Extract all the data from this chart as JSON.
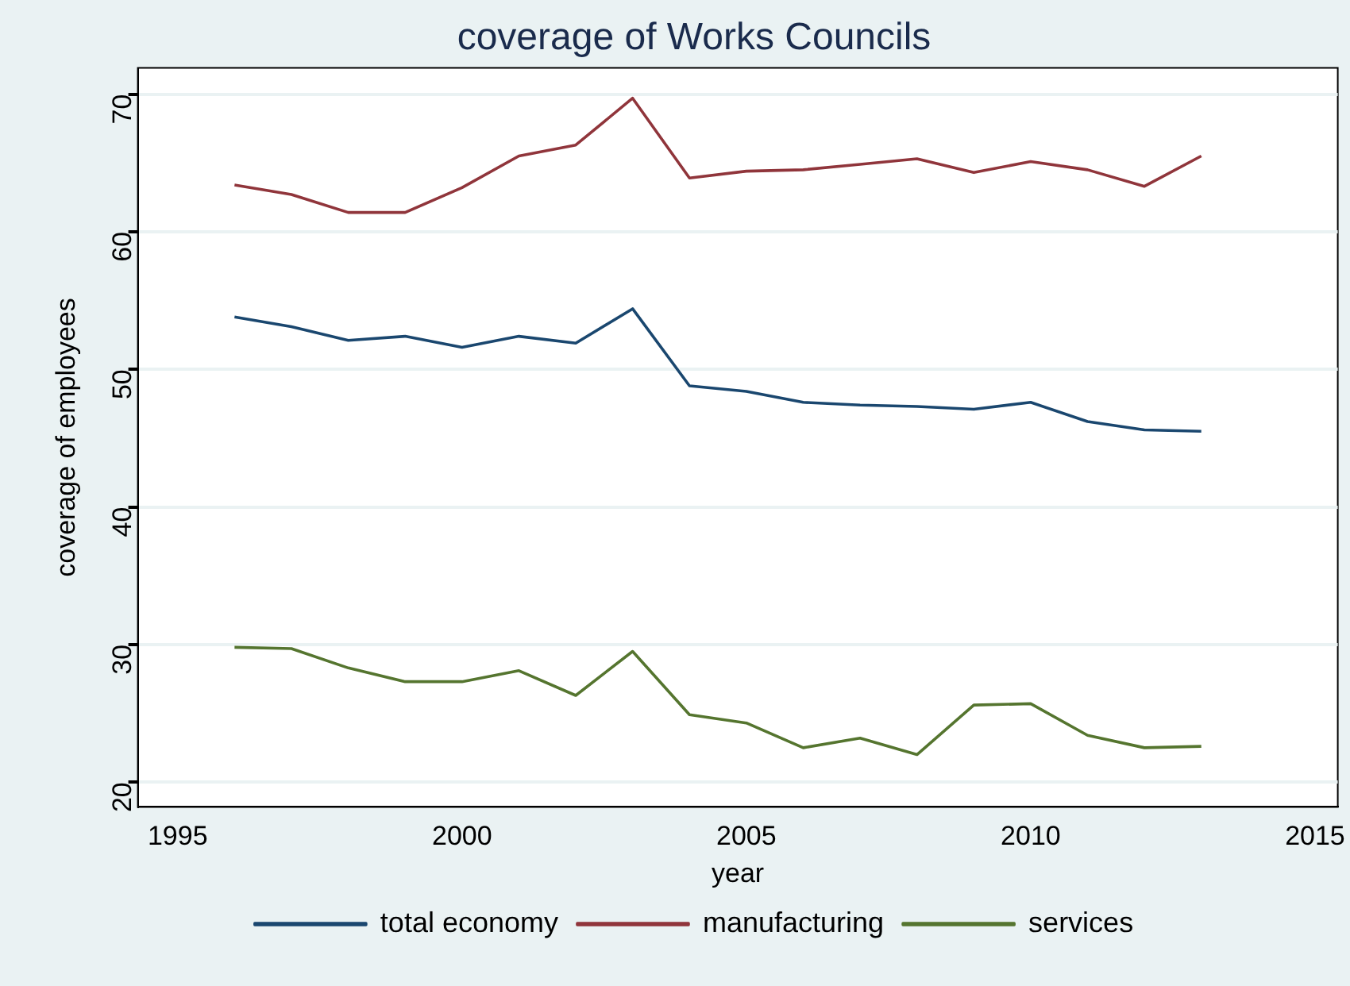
{
  "chart_data": {
    "type": "line",
    "title": "coverage of Works Councils",
    "xlabel": "year",
    "ylabel": "coverage of employees",
    "x": [
      1996,
      1997,
      1998,
      1999,
      2000,
      2001,
      2002,
      2003,
      2004,
      2005,
      2006,
      2007,
      2008,
      2009,
      2010,
      2011,
      2012,
      2013
    ],
    "series": [
      {
        "name": "total economy",
        "color": "#1a476f",
        "values": [
          53.8,
          53.1,
          52.1,
          52.4,
          51.6,
          52.4,
          51.9,
          54.4,
          48.8,
          48.4,
          47.6,
          47.4,
          47.3,
          47.1,
          47.6,
          46.2,
          45.6,
          45.5
        ]
      },
      {
        "name": "manufacturing",
        "color": "#90353b",
        "values": [
          63.4,
          62.7,
          61.4,
          61.4,
          63.2,
          65.5,
          66.3,
          69.7,
          63.9,
          64.4,
          64.5,
          64.9,
          65.3,
          64.3,
          65.1,
          64.5,
          63.3,
          65.5
        ]
      },
      {
        "name": "services",
        "color": "#55752f",
        "values": [
          29.8,
          29.7,
          28.3,
          27.3,
          27.3,
          28.1,
          26.3,
          29.5,
          24.9,
          24.3,
          22.5,
          23.2,
          22.0,
          25.6,
          25.7,
          23.4,
          22.5,
          22.6
        ]
      }
    ],
    "xlim": [
      1994.3,
      2015.4
    ],
    "xticks": [
      1995,
      2000,
      2005,
      2010,
      2015
    ],
    "ylim": [
      18.2,
      71.9
    ],
    "yticks": [
      20,
      30,
      40,
      50,
      60,
      70
    ],
    "grid": "y",
    "legend": "bottom",
    "marker": "none",
    "line_style": "solid"
  }
}
